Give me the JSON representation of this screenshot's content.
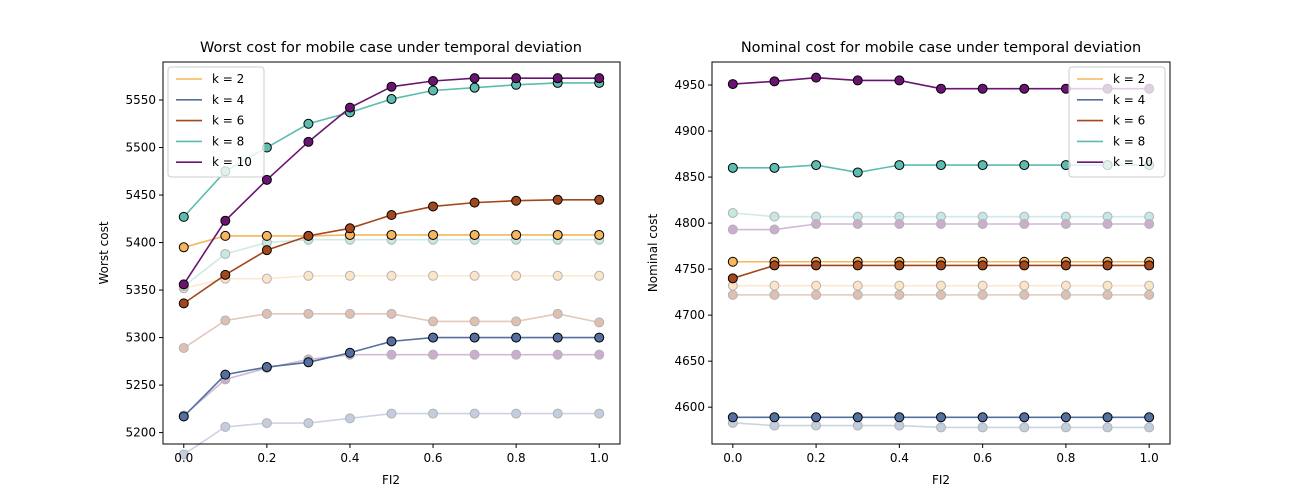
{
  "chart_data": [
    {
      "type": "line",
      "title": "Worst cost for mobile case under temporal deviation",
      "xlabel": "FI2",
      "ylabel": "Worst cost",
      "xlim": [
        -0.05,
        1.05
      ],
      "ylim": [
        5188,
        5590
      ],
      "xticks": [
        0.0,
        0.2,
        0.4,
        0.6,
        0.8,
        1.0
      ],
      "xtick_labels": [
        "0.0",
        "0.2",
        "0.4",
        "0.6",
        "0.8",
        "1.0"
      ],
      "yticks": [
        5200,
        5250,
        5300,
        5350,
        5400,
        5450,
        5500,
        5550
      ],
      "ytick_labels": [
        "5200",
        "5250",
        "5300",
        "5350",
        "5400",
        "5450",
        "5500",
        "5550"
      ],
      "legend_position": "top-left",
      "x": [
        0.0,
        0.1,
        0.2,
        0.3,
        0.4,
        0.5,
        0.6,
        0.7,
        0.8,
        0.9,
        1.0
      ],
      "series": [
        {
          "name": "k = 2",
          "color": "#f7b55c",
          "values": [
            5395,
            5407,
            5407,
            5407,
            5408,
            5408,
            5408,
            5408,
            5408,
            5408,
            5408
          ]
        },
        {
          "name": "k = 4",
          "color": "#5470a0",
          "values": [
            5217,
            5261,
            5269,
            5274,
            5284,
            5296,
            5300,
            5300,
            5300,
            5300,
            5300
          ]
        },
        {
          "name": "k = 6",
          "color": "#a3471c",
          "values": [
            5336,
            5366,
            5392,
            5407,
            5415,
            5429,
            5438,
            5442,
            5444,
            5445,
            5445
          ]
        },
        {
          "name": "k = 8",
          "color": "#5cbcb0",
          "values": [
            5427,
            5475,
            5500,
            5525,
            5537,
            5551,
            5560,
            5563,
            5566,
            5568,
            5568
          ]
        },
        {
          "name": "k = 10",
          "color": "#6a1472",
          "values": [
            5356,
            5423,
            5466,
            5506,
            5542,
            5564,
            5570,
            5573,
            5573,
            5573,
            5573
          ]
        }
      ],
      "faded_series": [
        {
          "color": "#f7b55c",
          "values": [
            5352,
            5362,
            5362,
            5365,
            5365,
            5365,
            5365,
            5365,
            5365,
            5365,
            5365
          ]
        },
        {
          "color": "#5470a0",
          "values": [
            5177,
            5206,
            5210,
            5210,
            5215,
            5220,
            5220,
            5220,
            5220,
            5220,
            5220
          ]
        },
        {
          "color": "#a3471c",
          "values": [
            5289,
            5318,
            5325,
            5325,
            5325,
            5325,
            5317,
            5317,
            5317,
            5325,
            5316
          ]
        },
        {
          "color": "#5cbcb0",
          "values": [
            5354,
            5388,
            5400,
            5403,
            5403,
            5403,
            5403,
            5403,
            5403,
            5403,
            5403
          ]
        },
        {
          "color": "#6a1472",
          "values": [
            5218,
            5256,
            5268,
            5277,
            5282,
            5282,
            5282,
            5282,
            5282,
            5282,
            5282
          ]
        }
      ]
    },
    {
      "type": "line",
      "title": "Nominal cost for mobile case under temporal deviation",
      "xlabel": "FI2",
      "ylabel": "Nominal cost",
      "xlim": [
        -0.05,
        1.05
      ],
      "ylim": [
        4560,
        4975
      ],
      "xticks": [
        0.0,
        0.2,
        0.4,
        0.6,
        0.8,
        1.0
      ],
      "xtick_labels": [
        "0.0",
        "0.2",
        "0.4",
        "0.6",
        "0.8",
        "1.0"
      ],
      "yticks": [
        4600,
        4650,
        4700,
        4750,
        4800,
        4850,
        4900,
        4950
      ],
      "ytick_labels": [
        "4600",
        "4650",
        "4700",
        "4750",
        "4800",
        "4850",
        "4900",
        "4950"
      ],
      "legend_position": "top-right",
      "x": [
        0.0,
        0.1,
        0.2,
        0.3,
        0.4,
        0.5,
        0.6,
        0.7,
        0.8,
        0.9,
        1.0
      ],
      "series": [
        {
          "name": "k = 2",
          "color": "#f7b55c",
          "values": [
            4758,
            4758,
            4758,
            4758,
            4758,
            4758,
            4758,
            4758,
            4758,
            4758,
            4758
          ]
        },
        {
          "name": "k = 4",
          "color": "#5470a0",
          "values": [
            4589,
            4589,
            4589,
            4589,
            4589,
            4589,
            4589,
            4589,
            4589,
            4589,
            4589
          ]
        },
        {
          "name": "k = 6",
          "color": "#a3471c",
          "values": [
            4740,
            4754,
            4754,
            4754,
            4754,
            4754,
            4754,
            4754,
            4754,
            4754,
            4754
          ]
        },
        {
          "name": "k = 8",
          "color": "#5cbcb0",
          "values": [
            4860,
            4860,
            4863,
            4855,
            4863,
            4863,
            4863,
            4863,
            4863,
            4863,
            4863
          ]
        },
        {
          "name": "k = 10",
          "color": "#6a1472",
          "values": [
            4951,
            4954,
            4958,
            4955,
            4955,
            4946,
            4946,
            4946,
            4946,
            4946,
            4946
          ]
        }
      ],
      "faded_series": [
        {
          "color": "#f7b55c",
          "values": [
            4732,
            4732,
            4732,
            4732,
            4732,
            4732,
            4732,
            4732,
            4732,
            4732,
            4732
          ]
        },
        {
          "color": "#5470a0",
          "values": [
            4583,
            4580,
            4580,
            4580,
            4580,
            4578,
            4578,
            4578,
            4578,
            4578,
            4578
          ]
        },
        {
          "color": "#a3471c",
          "values": [
            4722,
            4722,
            4722,
            4722,
            4722,
            4722,
            4722,
            4722,
            4722,
            4722,
            4722
          ]
        },
        {
          "color": "#5cbcb0",
          "values": [
            4811,
            4807,
            4807,
            4807,
            4807,
            4807,
            4807,
            4807,
            4807,
            4807,
            4807
          ]
        },
        {
          "color": "#6a1472",
          "values": [
            4793,
            4793,
            4799,
            4799,
            4799,
            4799,
            4799,
            4799,
            4799,
            4799,
            4799
          ]
        }
      ]
    }
  ]
}
